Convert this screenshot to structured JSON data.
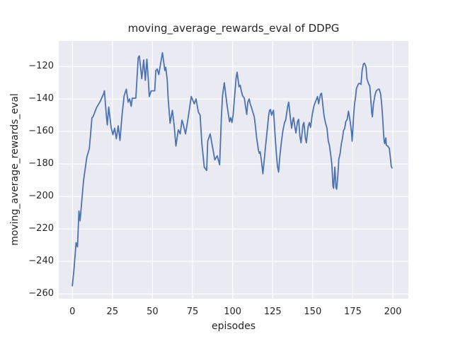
{
  "figure": {
    "background": "#ffffff"
  },
  "chart_data": {
    "type": "line",
    "title": "moving_average_rewards_eval of DDPG",
    "xlabel": "episodes",
    "ylabel": "moving_average_rewards_eval",
    "x_ticks": [
      0,
      25,
      50,
      75,
      100,
      125,
      150,
      175,
      200
    ],
    "y_ticks": [
      -120,
      -140,
      -160,
      -180,
      -200,
      -220,
      -240,
      -260
    ],
    "xlim": [
      -8.5,
      209.7
    ],
    "ylim": [
      -263.0,
      -104.3
    ],
    "grid": true,
    "legend": "none",
    "style": {
      "plot_background": "#eaeaf2",
      "grid_color": "#ffffff",
      "line_color": "#4c72b0",
      "text_color": "#262626",
      "line_width": 1.8
    },
    "series": [
      {
        "name": "moving_average_rewards_eval",
        "points": [
          [
            0,
            -255
          ],
          [
            1,
            -245
          ],
          [
            2.3,
            -228.5
          ],
          [
            3.2,
            -231
          ],
          [
            4.1,
            -209
          ],
          [
            4.8,
            -215
          ],
          [
            7,
            -190
          ],
          [
            9,
            -176
          ],
          [
            10.6,
            -170.5
          ],
          [
            11.5,
            -160
          ],
          [
            12.2,
            -151.5
          ],
          [
            12.9,
            -151
          ],
          [
            15,
            -145.5
          ],
          [
            17.4,
            -141.5
          ],
          [
            19.6,
            -136.5
          ],
          [
            20,
            -135
          ],
          [
            21.2,
            -150
          ],
          [
            21.8,
            -156
          ],
          [
            22.7,
            -145
          ],
          [
            24.2,
            -157.5
          ],
          [
            25.3,
            -162
          ],
          [
            26.4,
            -158
          ],
          [
            27.4,
            -164.5
          ],
          [
            28.6,
            -156.5
          ],
          [
            29.7,
            -165.5
          ],
          [
            31,
            -150
          ],
          [
            32.3,
            -138
          ],
          [
            33.7,
            -134
          ],
          [
            34.8,
            -142
          ],
          [
            35.7,
            -140
          ],
          [
            36.7,
            -144.5
          ],
          [
            37.4,
            -139.5
          ],
          [
            39.6,
            -139.5
          ],
          [
            41.1,
            -114.5
          ],
          [
            41.8,
            -113.5
          ],
          [
            43.3,
            -127.5
          ],
          [
            44.5,
            -116
          ],
          [
            45.5,
            -128.5
          ],
          [
            46.5,
            -115.5
          ],
          [
            47.4,
            -128.5
          ],
          [
            48,
            -138.5
          ],
          [
            49.2,
            -135
          ],
          [
            51.4,
            -135
          ],
          [
            52.1,
            -122.5
          ],
          [
            52.9,
            -121.5
          ],
          [
            53.9,
            -125
          ],
          [
            56.2,
            -111.5
          ],
          [
            57.7,
            -122.5
          ],
          [
            58.3,
            -120.5
          ],
          [
            59.2,
            -128.5
          ],
          [
            59.8,
            -140
          ],
          [
            61,
            -155
          ],
          [
            62.4,
            -147
          ],
          [
            63.5,
            -156
          ],
          [
            64.6,
            -169
          ],
          [
            66.1,
            -159
          ],
          [
            67.3,
            -161.5
          ],
          [
            68.4,
            -153
          ],
          [
            69,
            -155
          ],
          [
            70.6,
            -161.5
          ],
          [
            72,
            -153
          ],
          [
            74.2,
            -138.5
          ],
          [
            76.1,
            -143
          ],
          [
            77.2,
            -140
          ],
          [
            78.6,
            -148
          ],
          [
            79.7,
            -150
          ],
          [
            80.8,
            -167.5
          ],
          [
            82.3,
            -182
          ],
          [
            83.8,
            -184
          ],
          [
            84.5,
            -166
          ],
          [
            86,
            -161.5
          ],
          [
            87,
            -167
          ],
          [
            88.9,
            -177.5
          ],
          [
            90.4,
            -175
          ],
          [
            91.9,
            -180.5
          ],
          [
            93,
            -151
          ],
          [
            93.7,
            -138
          ],
          [
            94.8,
            -130
          ],
          [
            95.6,
            -136.5
          ],
          [
            96.4,
            -143
          ],
          [
            97.7,
            -151.5
          ],
          [
            98.1,
            -154
          ],
          [
            98.8,
            -151.5
          ],
          [
            99.6,
            -154.5
          ],
          [
            100.3,
            -150
          ],
          [
            101,
            -141.5
          ],
          [
            102.2,
            -127
          ],
          [
            102.8,
            -123.5
          ],
          [
            104,
            -132.5
          ],
          [
            104.7,
            -131.5
          ],
          [
            105.4,
            -135
          ],
          [
            106.2,
            -138
          ],
          [
            107.3,
            -139.5
          ],
          [
            107.9,
            -143.5
          ],
          [
            108.8,
            -149.5
          ],
          [
            109.5,
            -142
          ],
          [
            110.3,
            -140
          ],
          [
            111,
            -143
          ],
          [
            111.7,
            -145
          ],
          [
            113.5,
            -151
          ],
          [
            114.2,
            -156.5
          ],
          [
            115,
            -164
          ],
          [
            116.2,
            -172
          ],
          [
            116.7,
            -173.5
          ],
          [
            117.2,
            -172.5
          ],
          [
            118.1,
            -179
          ],
          [
            118.9,
            -186
          ],
          [
            119.6,
            -179
          ],
          [
            120.6,
            -168.5
          ],
          [
            121.7,
            -158
          ],
          [
            122.5,
            -150
          ],
          [
            123.1,
            -147
          ],
          [
            123.6,
            -146.5
          ],
          [
            124.3,
            -150
          ],
          [
            125.2,
            -147.5
          ],
          [
            125.5,
            -147
          ],
          [
            126.5,
            -162
          ],
          [
            127.2,
            -172
          ],
          [
            128,
            -181.5
          ],
          [
            128.7,
            -185
          ],
          [
            129.4,
            -176
          ],
          [
            130.5,
            -166
          ],
          [
            131.4,
            -159.5
          ],
          [
            132.4,
            -154.5
          ],
          [
            133.1,
            -153
          ],
          [
            134.3,
            -145
          ],
          [
            135,
            -142
          ],
          [
            135.8,
            -149.5
          ],
          [
            136.8,
            -158
          ],
          [
            137.6,
            -153
          ],
          [
            138,
            -151.5
          ],
          [
            139,
            -158
          ],
          [
            139.5,
            -161
          ],
          [
            140.5,
            -154
          ],
          [
            141.2,
            -152.5
          ],
          [
            142,
            -163
          ],
          [
            142.7,
            -167
          ],
          [
            143.9,
            -156
          ],
          [
            144.5,
            -154.5
          ],
          [
            145.4,
            -164
          ],
          [
            146,
            -167
          ],
          [
            147.1,
            -157
          ],
          [
            147.9,
            -154.5
          ],
          [
            148.6,
            -157.5
          ],
          [
            149.8,
            -149
          ],
          [
            150.8,
            -144
          ],
          [
            152,
            -141
          ],
          [
            153,
            -138.5
          ],
          [
            153.7,
            -143
          ],
          [
            154.9,
            -137
          ],
          [
            155.5,
            -136.5
          ],
          [
            156.4,
            -144.5
          ],
          [
            157,
            -150
          ],
          [
            157.9,
            -154.5
          ],
          [
            158.9,
            -158
          ],
          [
            159.7,
            -166
          ],
          [
            160.4,
            -168.5
          ],
          [
            161.1,
            -173.5
          ],
          [
            161.9,
            -180
          ],
          [
            162.6,
            -193.5
          ],
          [
            163,
            -195
          ],
          [
            163.8,
            -182
          ],
          [
            164.5,
            -194.5
          ],
          [
            164.9,
            -195.5
          ],
          [
            165.6,
            -188
          ],
          [
            166.3,
            -177
          ],
          [
            167.1,
            -173.5
          ],
          [
            167.8,
            -168
          ],
          [
            168.5,
            -164.5
          ],
          [
            169.2,
            -159.5
          ],
          [
            170,
            -158
          ],
          [
            170.6,
            -154
          ],
          [
            171.5,
            -152.5
          ],
          [
            172.3,
            -147.5
          ],
          [
            173.4,
            -154
          ],
          [
            174.2,
            -160.5
          ],
          [
            174.6,
            -166
          ],
          [
            175.6,
            -149
          ],
          [
            176.1,
            -143
          ],
          [
            176.7,
            -139
          ],
          [
            177.3,
            -133.5
          ],
          [
            178.6,
            -130.5
          ],
          [
            179.5,
            -130.5
          ],
          [
            180.1,
            -131
          ],
          [
            180.8,
            -122.5
          ],
          [
            181.6,
            -118.5
          ],
          [
            182.3,
            -118
          ],
          [
            183.3,
            -120.5
          ],
          [
            183.8,
            -127.5
          ],
          [
            184.1,
            -128.5
          ],
          [
            185,
            -131
          ],
          [
            185.6,
            -132
          ],
          [
            186,
            -137
          ],
          [
            186.8,
            -148.5
          ],
          [
            187.2,
            -151
          ],
          [
            187.9,
            -143
          ],
          [
            189,
            -137
          ],
          [
            189.7,
            -135
          ],
          [
            190.9,
            -134
          ],
          [
            191.5,
            -134
          ],
          [
            192.4,
            -137
          ],
          [
            193,
            -143
          ],
          [
            193.5,
            -149.5
          ],
          [
            193.9,
            -156
          ],
          [
            194.2,
            -161.5
          ],
          [
            194.6,
            -166
          ],
          [
            194.9,
            -167.5
          ],
          [
            195.6,
            -164
          ],
          [
            195.9,
            -168.5
          ],
          [
            196.8,
            -169
          ],
          [
            197.8,
            -170.5
          ],
          [
            198.3,
            -175
          ],
          [
            199,
            -181.5
          ],
          [
            199.5,
            -182.5
          ]
        ]
      }
    ]
  }
}
